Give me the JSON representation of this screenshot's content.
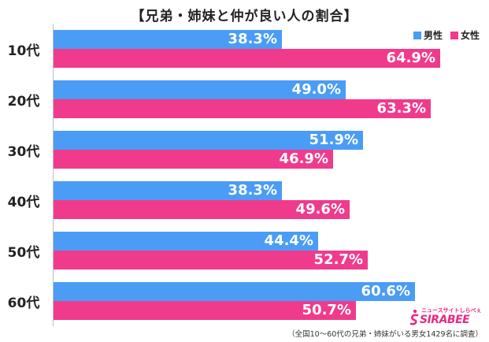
{
  "title": "【兄弟・姉妹と仲が良い人の割合】",
  "legend": {
    "male": "男性",
    "female": "女性"
  },
  "colors": {
    "male": "#4a9cf5",
    "female": "#f03b8c"
  },
  "footnote": "（全国10～60代の兄弟・姉妹がいる男女1429名に調査）",
  "logo": {
    "text": "SIRABEE",
    "sub": "ニュースサイトしらべぇ"
  },
  "chart_data": {
    "type": "bar",
    "orientation": "horizontal",
    "categories": [
      "10代",
      "20代",
      "30代",
      "40代",
      "50代",
      "60代"
    ],
    "series": [
      {
        "name": "男性",
        "values": [
          38.3,
          49.0,
          51.9,
          38.3,
          44.4,
          60.6
        ],
        "labels": [
          "38.3%",
          "49.0%",
          "51.9%",
          "38.3%",
          "44.4%",
          "60.6%"
        ]
      },
      {
        "name": "女性",
        "values": [
          64.9,
          63.3,
          46.9,
          49.6,
          52.7,
          50.7
        ],
        "labels": [
          "64.9%",
          "63.3%",
          "46.9%",
          "49.6%",
          "52.7%",
          "50.7%"
        ]
      }
    ],
    "title": "【兄弟・姉妹と仲が良い人の割合】",
    "xlabel": "",
    "ylabel": "",
    "xlim": [
      0,
      70
    ],
    "legend_position": "top-right",
    "grid": false
  }
}
